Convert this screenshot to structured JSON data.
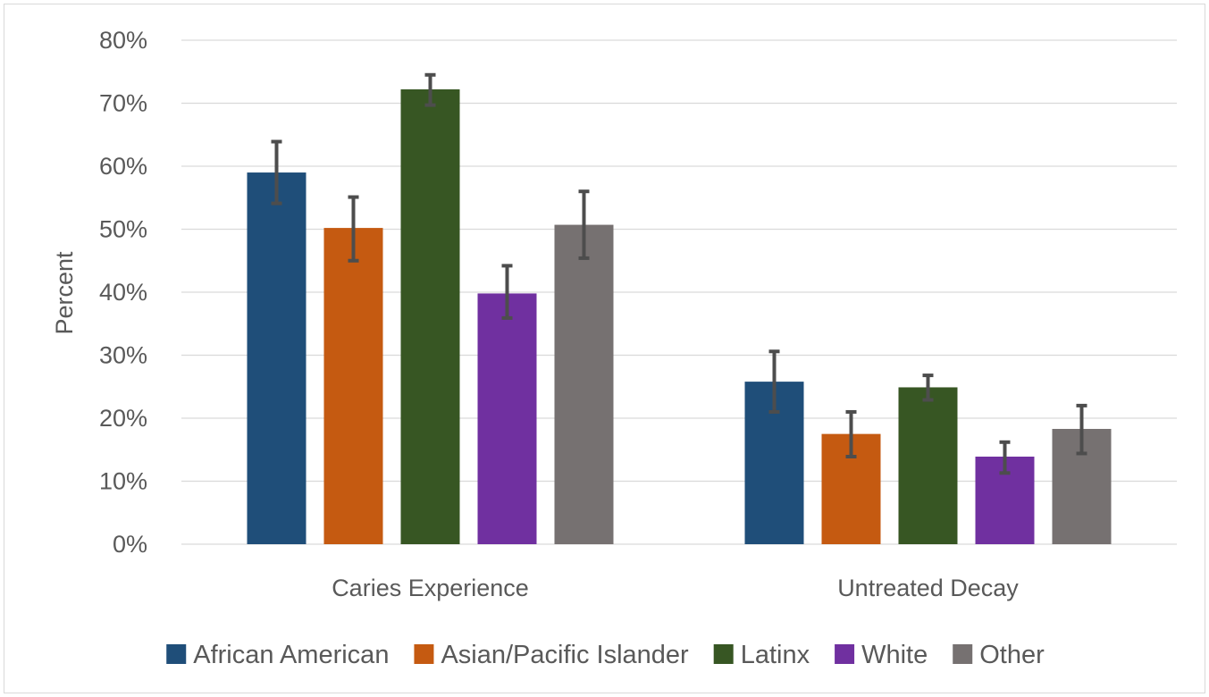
{
  "chart_data": {
    "type": "bar",
    "title": "",
    "xlabel": "",
    "ylabel": "Percent",
    "ylim": [
      0,
      0.8
    ],
    "yticks": [
      0,
      0.1,
      0.2,
      0.3,
      0.4,
      0.5,
      0.6,
      0.7,
      0.8
    ],
    "ytick_labels": [
      "0%",
      "10%",
      "20%",
      "30%",
      "40%",
      "50%",
      "60%",
      "70%",
      "80%"
    ],
    "grid": true,
    "legend_position": "bottom",
    "categories": [
      "Caries Experience",
      "Untreated Decay"
    ],
    "series": [
      {
        "name": "African American",
        "color": "#1f4e79",
        "values": [
          0.59,
          0.258
        ],
        "err_low": [
          0.541,
          0.21
        ],
        "err_high": [
          0.639,
          0.306
        ]
      },
      {
        "name": "Asian/Pacific Islander",
        "color": "#c55a11",
        "values": [
          0.502,
          0.175
        ],
        "err_low": [
          0.45,
          0.139
        ],
        "err_high": [
          0.551,
          0.21
        ]
      },
      {
        "name": "Latinx",
        "color": "#375623",
        "values": [
          0.722,
          0.249
        ],
        "err_low": [
          0.697,
          0.229
        ],
        "err_high": [
          0.745,
          0.268
        ]
      },
      {
        "name": "White",
        "color": "#7030a0",
        "values": [
          0.398,
          0.139
        ],
        "err_low": [
          0.359,
          0.113
        ],
        "err_high": [
          0.442,
          0.162
        ]
      },
      {
        "name": "Other",
        "color": "#767171",
        "values": [
          0.507,
          0.183
        ],
        "err_low": [
          0.454,
          0.144
        ],
        "err_high": [
          0.56,
          0.22
        ]
      }
    ]
  }
}
